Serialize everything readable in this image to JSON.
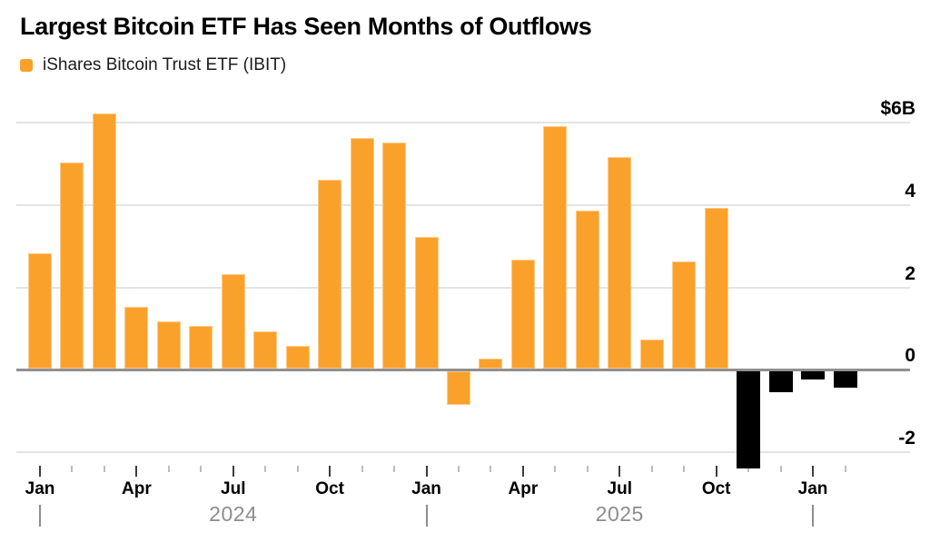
{
  "header": {
    "title": "Largest Bitcoin ETF Has Seen Months of Outflows",
    "legend": {
      "label": "iShares Bitcoin Trust ETF (IBIT)",
      "swatch_color": "#FAA12C"
    }
  },
  "chart_data": {
    "type": "bar",
    "title": "Largest Bitcoin ETF Has Seen Months of Outflows",
    "legend_entries": [
      "iShares Bitcoin Trust ETF (IBIT)"
    ],
    "legend_position": "top-left",
    "unit_label": "$6B top tick implies billions of US dollars",
    "categories": [
      "Jan 2024",
      "Feb 2024",
      "Mar 2024",
      "Apr 2024",
      "May 2024",
      "Jun 2024",
      "Jul 2024",
      "Aug 2024",
      "Sep 2024",
      "Oct 2024",
      "Nov 2024",
      "Dec 2024",
      "Jan 2025",
      "Feb 2025",
      "Mar 2025",
      "Apr 2025",
      "May 2025",
      "Jun 2025",
      "Jul 2025",
      "Aug 2025",
      "Sep 2025",
      "Oct 2025",
      "Nov 2025",
      "Dec 2025",
      "Jan 2026",
      "Feb 2026"
    ],
    "series": [
      {
        "name": "iShares Bitcoin Trust ETF (IBIT)",
        "values": [
          2.8,
          5.0,
          6.2,
          1.5,
          1.15,
          1.05,
          2.3,
          0.9,
          0.55,
          4.6,
          5.6,
          5.5,
          3.2,
          -0.8,
          0.25,
          2.65,
          5.9,
          3.85,
          5.15,
          0.7,
          2.6,
          3.9,
          -2.35,
          -0.5,
          -0.2,
          -0.4
        ]
      }
    ],
    "bar_colors": [
      "orange",
      "orange",
      "orange",
      "orange",
      "orange",
      "orange",
      "orange",
      "orange",
      "orange",
      "orange",
      "orange",
      "orange",
      "orange",
      "orange",
      "orange",
      "orange",
      "orange",
      "orange",
      "orange",
      "orange",
      "orange",
      "orange",
      "black",
      "black",
      "black",
      "black"
    ],
    "palette": {
      "orange": "#FAA12C",
      "black": "#000000"
    },
    "y_axis": {
      "side": "right",
      "ticks": [
        {
          "value": 6,
          "label": "$6B"
        },
        {
          "value": 4,
          "label": "4"
        },
        {
          "value": 2,
          "label": "2"
        },
        {
          "value": 0,
          "label": "0"
        },
        {
          "value": -2,
          "label": "-2"
        }
      ],
      "range": [
        -2.6,
        6.3
      ],
      "gridlines": true
    },
    "x_axis": {
      "tick_every_month": true,
      "major_tick_every": 3,
      "month_labels": [
        {
          "index": 0,
          "label": "Jan"
        },
        {
          "index": 3,
          "label": "Apr"
        },
        {
          "index": 6,
          "label": "Jul"
        },
        {
          "index": 9,
          "label": "Oct"
        },
        {
          "index": 12,
          "label": "Jan"
        },
        {
          "index": 15,
          "label": "Apr"
        },
        {
          "index": 18,
          "label": "Jul"
        },
        {
          "index": 21,
          "label": "Oct"
        },
        {
          "index": 24,
          "label": "Jan"
        }
      ],
      "year_labels": [
        {
          "index": 6,
          "label": "2024"
        },
        {
          "index": 18,
          "label": "2025"
        }
      ],
      "year_dividers": [
        0,
        12,
        24
      ]
    }
  }
}
